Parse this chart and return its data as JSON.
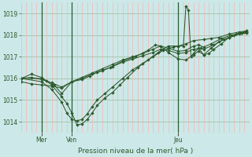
{
  "bg_color": "#cce8e8",
  "grid_color_h": "#99bb99",
  "grid_color_v": "#ffaaaa",
  "line_color": "#2d5a2d",
  "title": "Pression niveau de la mer( hPa )",
  "xlabel_mer": "Mer",
  "xlabel_ven": "Ven",
  "xlabel_jeu": "Jeu",
  "ylim": [
    1013.5,
    1019.5
  ],
  "yticks": [
    1014,
    1015,
    1016,
    1017,
    1018,
    1019
  ],
  "xlim": [
    0,
    90
  ],
  "vline_x": [
    8,
    20,
    62
  ],
  "xtick_positions": [
    8,
    20,
    62
  ],
  "n_hgrid": 12,
  "series": [
    {
      "points": [
        [
          0,
          1016.0
        ],
        [
          8,
          1016.0
        ],
        [
          10,
          1015.9
        ],
        [
          13,
          1015.7
        ],
        [
          16,
          1015.3
        ],
        [
          20,
          1015.85
        ],
        [
          24,
          1015.95
        ],
        [
          27,
          1016.1
        ],
        [
          30,
          1016.3
        ],
        [
          35,
          1016.5
        ],
        [
          40,
          1016.8
        ],
        [
          45,
          1017.0
        ],
        [
          50,
          1017.3
        ],
        [
          53,
          1017.55
        ],
        [
          55,
          1017.5
        ],
        [
          58,
          1017.2
        ],
        [
          62,
          1016.9
        ],
        [
          65,
          1016.85
        ],
        [
          68,
          1017.1
        ],
        [
          70,
          1017.25
        ],
        [
          72,
          1017.1
        ],
        [
          75,
          1017.4
        ],
        [
          78,
          1017.7
        ],
        [
          82,
          1017.9
        ],
        [
          86,
          1018.05
        ],
        [
          89,
          1018.1
        ]
      ]
    },
    {
      "points": [
        [
          0,
          1016.0
        ],
        [
          8,
          1015.85
        ],
        [
          12,
          1015.5
        ],
        [
          16,
          1014.9
        ],
        [
          18,
          1014.4
        ],
        [
          20,
          1014.1
        ],
        [
          22,
          1014.05
        ],
        [
          24,
          1014.1
        ],
        [
          26,
          1014.35
        ],
        [
          28,
          1014.7
        ],
        [
          30,
          1015.0
        ],
        [
          33,
          1015.3
        ],
        [
          36,
          1015.6
        ],
        [
          40,
          1016.0
        ],
        [
          44,
          1016.4
        ],
        [
          48,
          1016.7
        ],
        [
          52,
          1017.0
        ],
        [
          56,
          1017.3
        ],
        [
          60,
          1017.45
        ],
        [
          62,
          1017.5
        ],
        [
          65,
          1017.6
        ],
        [
          68,
          1017.75
        ],
        [
          72,
          1017.8
        ],
        [
          75,
          1017.85
        ],
        [
          78,
          1017.9
        ],
        [
          82,
          1018.05
        ],
        [
          86,
          1018.15
        ],
        [
          89,
          1018.2
        ]
      ]
    },
    {
      "points": [
        [
          0,
          1015.85
        ],
        [
          4,
          1015.75
        ],
        [
          8,
          1015.7
        ],
        [
          12,
          1015.65
        ],
        [
          16,
          1015.55
        ],
        [
          20,
          1015.85
        ],
        [
          24,
          1016.0
        ],
        [
          28,
          1016.2
        ],
        [
          32,
          1016.35
        ],
        [
          36,
          1016.55
        ],
        [
          40,
          1016.75
        ],
        [
          44,
          1016.9
        ],
        [
          48,
          1017.05
        ],
        [
          52,
          1017.2
        ],
        [
          55,
          1017.35
        ],
        [
          58,
          1017.3
        ],
        [
          62,
          1017.15
        ],
        [
          65,
          1017.2
        ],
        [
          68,
          1017.35
        ],
        [
          71,
          1017.4
        ],
        [
          72,
          1017.35
        ],
        [
          76,
          1017.55
        ],
        [
          80,
          1017.8
        ],
        [
          84,
          1018.0
        ],
        [
          87,
          1018.1
        ],
        [
          89,
          1018.15
        ]
      ]
    },
    {
      "points": [
        [
          0,
          1016.0
        ],
        [
          4,
          1016.05
        ],
        [
          8,
          1015.95
        ],
        [
          12,
          1015.8
        ],
        [
          16,
          1015.6
        ],
        [
          20,
          1015.85
        ],
        [
          24,
          1016.05
        ],
        [
          28,
          1016.25
        ],
        [
          32,
          1016.45
        ],
        [
          36,
          1016.65
        ],
        [
          40,
          1016.85
        ],
        [
          44,
          1017.0
        ],
        [
          48,
          1017.15
        ],
        [
          52,
          1017.35
        ],
        [
          55,
          1017.5
        ],
        [
          58,
          1017.4
        ],
        [
          62,
          1017.25
        ],
        [
          65,
          1017.3
        ],
        [
          68,
          1017.5
        ],
        [
          70,
          1017.55
        ],
        [
          72,
          1017.45
        ],
        [
          75,
          1017.6
        ],
        [
          79,
          1017.85
        ],
        [
          83,
          1018.0
        ],
        [
          87,
          1018.1
        ],
        [
          89,
          1018.15
        ]
      ]
    },
    {
      "points": [
        [
          0,
          1016.0
        ],
        [
          4,
          1016.2
        ],
        [
          8,
          1016.05
        ],
        [
          12,
          1015.7
        ],
        [
          16,
          1015.15
        ],
        [
          18,
          1014.85
        ],
        [
          20,
          1014.4
        ],
        [
          22,
          1013.85
        ],
        [
          24,
          1013.9
        ],
        [
          26,
          1014.1
        ],
        [
          28,
          1014.4
        ],
        [
          30,
          1014.75
        ],
        [
          33,
          1015.1
        ],
        [
          36,
          1015.35
        ],
        [
          39,
          1015.7
        ],
        [
          42,
          1016.05
        ],
        [
          46,
          1016.5
        ],
        [
          50,
          1016.85
        ],
        [
          54,
          1017.2
        ],
        [
          58,
          1017.5
        ],
        [
          62,
          1017.5
        ],
        [
          64,
          1017.5
        ],
        [
          65,
          1019.35
        ],
        [
          66,
          1019.15
        ],
        [
          67,
          1017.0
        ],
        [
          68,
          1017.15
        ],
        [
          70,
          1017.4
        ],
        [
          72,
          1017.1
        ],
        [
          74,
          1017.15
        ],
        [
          76,
          1017.35
        ],
        [
          79,
          1017.6
        ],
        [
          82,
          1017.9
        ],
        [
          85,
          1018.05
        ],
        [
          88,
          1018.15
        ],
        [
          89,
          1018.2
        ]
      ]
    }
  ]
}
